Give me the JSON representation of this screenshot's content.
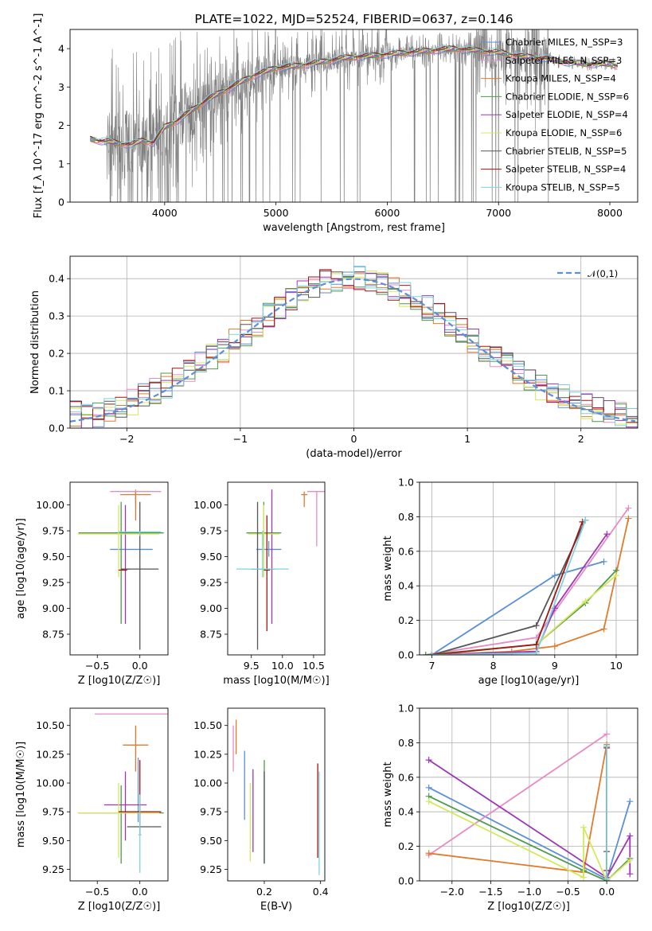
{
  "colors": {
    "spectrum": "#808080",
    "normal_curve": "#5b8fd6",
    "grid": "#b0b0b0",
    "models": [
      "#5b8fd6",
      "#e88bc4",
      "#e07b2b",
      "#4e9a4e",
      "#9d36b5",
      "#d4e85a",
      "#555555",
      "#a01515",
      "#7fd3df"
    ]
  },
  "chart_data": [
    {
      "id": "spectrum",
      "type": "line",
      "title": "PLATE=1022, MJD=52524, FIBERID=0637, z=0.146",
      "xlabel": "wavelength [Angstrom, rest frame]",
      "ylabel": "Flux [f_λ 10^-17 erg cm^-2 s^-1 A^-1]",
      "xlim": [
        3150,
        8250
      ],
      "ylim": [
        0,
        4.5
      ],
      "xticks": [
        4000,
        5000,
        6000,
        7000,
        8000
      ],
      "yticks": [
        0,
        1,
        2,
        3,
        4
      ],
      "grid": false,
      "legend_position": "top-right",
      "data_x_range": [
        3330,
        8070
      ],
      "continuum": {
        "x": [
          3330,
          3400,
          3500,
          3600,
          3700,
          3800,
          3900,
          4000,
          4100,
          4200,
          4300,
          4400,
          4500,
          4600,
          4700,
          4800,
          4900,
          5000,
          5200,
          5400,
          5600,
          5800,
          6000,
          6200,
          6400,
          6600,
          6800,
          7000,
          7200,
          7400,
          7600,
          7800,
          8000,
          8070
        ],
        "y": [
          1.65,
          1.6,
          1.58,
          1.52,
          1.5,
          1.6,
          1.55,
          1.95,
          2.1,
          2.3,
          2.5,
          2.7,
          2.85,
          3.0,
          3.15,
          3.3,
          3.4,
          3.5,
          3.55,
          3.65,
          3.75,
          3.8,
          3.85,
          3.9,
          3.95,
          4.0,
          3.95,
          3.9,
          3.8,
          3.75,
          3.65,
          3.6,
          3.6,
          3.55
        ]
      },
      "legend": [
        "Chabrier MILES, N_SSP=3",
        "Salpeter MILES, N_SSP=3",
        "Kroupa MILES, N_SSP=4",
        "Chabrier ELODIE, N_SSP=6",
        "Salpeter ELODIE, N_SSP=4",
        "Kroupa ELODIE, N_SSP=6",
        "Chabrier STELIB, N_SSP=5",
        "Salpeter STELIB, N_SSP=4",
        "Kroupa STELIB, N_SSP=5"
      ]
    },
    {
      "id": "residuals",
      "type": "line",
      "xlabel": "(data-model)/error",
      "ylabel": "Normed distribution",
      "xlim": [
        -2.5,
        2.5
      ],
      "ylim": [
        0,
        0.46
      ],
      "xticks": [
        -2,
        -1,
        0,
        1,
        2
      ],
      "yticks": [
        0.0,
        0.1,
        0.2,
        0.3,
        0.4
      ],
      "grid": true,
      "legend_position": "top-right",
      "legend": [
        "𝒩(0,1)"
      ],
      "histogram": {
        "bin_width": 0.1,
        "x_start": -2.5,
        "base": [
          0.04,
          0.03,
          0.035,
          0.05,
          0.06,
          0.07,
          0.085,
          0.1,
          0.115,
          0.13,
          0.15,
          0.17,
          0.19,
          0.21,
          0.23,
          0.255,
          0.28,
          0.3,
          0.32,
          0.34,
          0.36,
          0.375,
          0.39,
          0.395,
          0.4,
          0.4,
          0.395,
          0.385,
          0.37,
          0.36,
          0.34,
          0.32,
          0.3,
          0.28,
          0.26,
          0.235,
          0.21,
          0.19,
          0.17,
          0.15,
          0.13,
          0.11,
          0.1,
          0.085,
          0.07,
          0.06,
          0.05,
          0.045,
          0.04,
          0.035
        ]
      }
    },
    {
      "id": "z-age",
      "type": "scatter",
      "xlabel": "Z [log10(Z/Z☉)]",
      "ylabel": "age  [log10(age/yr)]",
      "xlim": [
        -0.82,
        0.33
      ],
      "ylim": [
        8.55,
        10.22
      ],
      "xticks": [
        -0.5,
        0.0
      ],
      "yticks": [
        8.75,
        9.0,
        9.25,
        9.5,
        9.75,
        10.0
      ],
      "grid": false,
      "points": [
        {
          "x": -0.1,
          "y": 9.57,
          "xerr": 0.25,
          "ylo": 9.57,
          "yhi": 9.57
        },
        {
          "x": -0.05,
          "y": 10.13,
          "xerr": 0.3,
          "ylo": 10.0,
          "yhi": 10.15
        },
        {
          "x": -0.05,
          "y": 10.1,
          "xerr": 0.18,
          "ylo": 9.85,
          "yhi": 10.13
        },
        {
          "x": -0.22,
          "y": 9.73,
          "xerr": 0.5,
          "ylo": 8.85,
          "yhi": 10.03
        },
        {
          "x": -0.17,
          "y": 9.38,
          "xerr": 0.05,
          "ylo": 8.85,
          "yhi": 10.0
        },
        {
          "x": -0.25,
          "y": 9.72,
          "xerr": 0.48,
          "ylo": 9.3,
          "yhi": 10.0
        },
        {
          "x": 0.0,
          "y": 9.38,
          "xerr": 0.22,
          "ylo": 8.6,
          "yhi": 10.03
        },
        {
          "x": -0.2,
          "y": 9.37,
          "xerr": 0.05,
          "ylo": 9.37,
          "yhi": 9.37
        },
        {
          "x": 0.0,
          "y": 9.74,
          "xerr": 0.25,
          "ylo": 9.7,
          "yhi": 9.74
        }
      ]
    },
    {
      "id": "mass-age",
      "type": "scatter",
      "xlabel": "mass [log10(M/M☉)]",
      "ylabel": "",
      "xlim": [
        9.12,
        10.68
      ],
      "ylim": [
        8.55,
        10.22
      ],
      "xticks": [
        9.5,
        10.0,
        10.5
      ],
      "yticks": [
        8.75,
        9.0,
        9.25,
        9.5,
        9.75,
        10.0
      ],
      "grid": false,
      "points": [
        {
          "x": 9.78,
          "y": 9.57,
          "xerr": 0.2,
          "ylo": 9.5,
          "yhi": 9.65
        },
        {
          "x": 10.55,
          "y": 10.13,
          "xerr": 0.15,
          "ylo": 9.6,
          "yhi": 10.13
        },
        {
          "x": 10.35,
          "y": 10.1,
          "xerr": 0.05,
          "ylo": 9.98,
          "yhi": 10.13
        },
        {
          "x": 9.7,
          "y": 9.73,
          "xerr": 0.28,
          "ylo": 9.6,
          "yhi": 10.03
        },
        {
          "x": 9.83,
          "y": 9.38,
          "xerr": 0.05,
          "ylo": 8.85,
          "yhi": 10.15
        },
        {
          "x": 9.7,
          "y": 9.72,
          "xerr": 0.25,
          "ylo": 9.3,
          "yhi": 10.0
        },
        {
          "x": 9.6,
          "y": 9.38,
          "xerr": 0.1,
          "ylo": 8.6,
          "yhi": 10.03
        },
        {
          "x": 9.75,
          "y": 9.37,
          "xerr": 0.05,
          "ylo": 8.78,
          "yhi": 9.9
        },
        {
          "x": 9.68,
          "y": 9.38,
          "xerr": 0.42,
          "ylo": 9.3,
          "yhi": 9.75
        }
      ]
    },
    {
      "id": "age-massweight",
      "type": "line",
      "xlabel": "age  [log10(age/yr)]",
      "ylabel": "mass weight",
      "xlim": [
        6.8,
        10.35
      ],
      "ylim": [
        0,
        1.0
      ],
      "xticks": [
        7,
        8,
        9,
        10
      ],
      "yticks": [
        0.0,
        0.2,
        0.4,
        0.6,
        0.8,
        1.0
      ],
      "grid": true,
      "series": [
        {
          "x": [
            7.0,
            9.0,
            9.8
          ],
          "y": [
            0.0,
            0.46,
            0.54
          ]
        },
        {
          "x": [
            6.9,
            8.7,
            10.2
          ],
          "y": [
            0.0,
            0.1,
            0.85
          ]
        },
        {
          "x": [
            7.0,
            8.3,
            9.0,
            9.8,
            10.2
          ],
          "y": [
            0.0,
            0.02,
            0.05,
            0.15,
            0.79
          ]
        },
        {
          "x": [
            6.9,
            8.7,
            9.5,
            10.0
          ],
          "y": [
            0.0,
            0.06,
            0.3,
            0.49
          ]
        },
        {
          "x": [
            7.0,
            8.7,
            9.0,
            9.85
          ],
          "y": [
            0.0,
            0.02,
            0.27,
            0.7
          ]
        },
        {
          "x": [
            7.0,
            8.7,
            9.5,
            10.0
          ],
          "y": [
            0.0,
            0.06,
            0.31,
            0.46
          ]
        },
        {
          "x": [
            7.0,
            8.7,
            9.5
          ],
          "y": [
            0.0,
            0.17,
            0.78
          ]
        },
        {
          "x": [
            7.0,
            8.7,
            9.45
          ],
          "y": [
            0.0,
            0.06,
            0.77
          ]
        },
        {
          "x": [
            7.0,
            8.7,
            9.5
          ],
          "y": [
            0.0,
            0.01,
            0.78
          ]
        }
      ]
    },
    {
      "id": "z-mass",
      "type": "scatter",
      "xlabel": "Z [log10(Z/Z☉)]",
      "ylabel": "mass [log10(M/M☉)]",
      "xlim": [
        -0.82,
        0.33
      ],
      "ylim": [
        9.15,
        10.65
      ],
      "xticks": [
        -0.5,
        0.0
      ],
      "yticks": [
        9.25,
        9.5,
        9.75,
        10.0,
        10.25,
        10.5
      ],
      "grid": false,
      "points": [
        {
          "x": -0.02,
          "y": 9.75,
          "xerr": 0.02,
          "ylo": 9.66,
          "yhi": 10.22
        },
        {
          "x": -0.05,
          "y": 10.6,
          "xerr": 0.48,
          "ylo": 10.6,
          "yhi": 10.6
        },
        {
          "x": -0.05,
          "y": 10.33,
          "xerr": 0.15,
          "ylo": 10.1,
          "yhi": 10.5
        },
        {
          "x": -0.22,
          "y": 9.74,
          "xerr": 0.5,
          "ylo": 9.3,
          "yhi": 9.98
        },
        {
          "x": -0.17,
          "y": 9.81,
          "xerr": 0.25,
          "ylo": 9.5,
          "yhi": 10.1
        },
        {
          "x": -0.25,
          "y": 9.74,
          "xerr": 0.48,
          "ylo": 9.35,
          "yhi": 10.0
        },
        {
          "x": 0.05,
          "y": 9.62,
          "xerr": 0.2,
          "ylo": 9.62,
          "yhi": 9.62
        },
        {
          "x": 0.0,
          "y": 9.75,
          "xerr": 0.25,
          "ylo": 9.55,
          "yhi": 10.2
        },
        {
          "x": 0.0,
          "y": 9.55,
          "xerr": 0.02,
          "ylo": 9.22,
          "yhi": 9.9
        }
      ]
    },
    {
      "id": "ebv-mass",
      "type": "scatter",
      "xlabel": "E(B-V)",
      "ylabel": "",
      "xlim": [
        0.07,
        0.415
      ],
      "ylim": [
        9.15,
        10.65
      ],
      "xticks": [
        0.2,
        0.4
      ],
      "yticks": [
        9.25,
        9.5,
        9.75,
        10.0,
        10.25,
        10.5
      ],
      "grid": false,
      "points": [
        {
          "x": 0.13,
          "y": 9.9,
          "ylo": 9.68,
          "yhi": 10.28
        },
        {
          "x": 0.09,
          "y": 10.3,
          "ylo": 10.1,
          "yhi": 10.5
        },
        {
          "x": 0.1,
          "y": 10.4,
          "ylo": 10.25,
          "yhi": 10.55
        },
        {
          "x": 0.2,
          "y": 9.75,
          "ylo": 9.3,
          "yhi": 10.2
        },
        {
          "x": 0.16,
          "y": 9.81,
          "ylo": 9.4,
          "yhi": 10.12
        },
        {
          "x": 0.15,
          "y": 9.74,
          "ylo": 9.32,
          "yhi": 10.0
        },
        {
          "x": 0.2,
          "y": 9.62,
          "ylo": 9.3,
          "yhi": 10.1
        },
        {
          "x": 0.39,
          "y": 9.75,
          "ylo": 9.35,
          "yhi": 10.17
        },
        {
          "x": 0.395,
          "y": 9.55,
          "ylo": 9.2,
          "yhi": 10.1
        }
      ]
    },
    {
      "id": "z-massweight",
      "type": "line",
      "xlabel": "Z [log10(Z/Z☉)]",
      "ylabel": "mass weight",
      "xlim": [
        -2.42,
        0.4
      ],
      "ylim": [
        0,
        1.0
      ],
      "xticks": [
        -2.0,
        -1.5,
        -1.0,
        -0.5,
        0.0
      ],
      "yticks": [
        0.0,
        0.2,
        0.4,
        0.6,
        0.8,
        1.0
      ],
      "grid": true,
      "series": [
        {
          "x": [
            -2.3,
            0.0,
            0.3
          ],
          "y": [
            0.54,
            0.01,
            0.46
          ]
        },
        {
          "x": [
            -2.3,
            0.0
          ],
          "y": [
            0.15,
            0.85
          ]
        },
        {
          "x": [
            -2.3,
            -0.3,
            0.0,
            0.0
          ],
          "y": [
            0.16,
            0.05,
            0.79,
            0.0
          ]
        },
        {
          "x": [
            -2.3,
            -0.3,
            0.0,
            0.3
          ],
          "y": [
            0.49,
            0.06,
            0.0,
            0.13
          ]
        },
        {
          "x": [
            -2.3,
            0.0,
            0.3,
            0.3
          ],
          "y": [
            0.7,
            0.02,
            0.26,
            0.04
          ]
        },
        {
          "x": [
            -2.3,
            -0.3,
            -0.3,
            0.0,
            0.3
          ],
          "y": [
            0.46,
            0.02,
            0.31,
            0.0,
            0.12
          ]
        },
        {
          "x": [
            0.0,
            0.0,
            0.0
          ],
          "y": [
            0.78,
            0.17,
            0.0
          ]
        },
        {
          "x": [
            0.0,
            0.0
          ],
          "y": [
            0.77,
            0.06
          ]
        },
        {
          "x": [
            0.0,
            0.0
          ],
          "y": [
            0.78,
            0.01
          ]
        }
      ]
    }
  ]
}
